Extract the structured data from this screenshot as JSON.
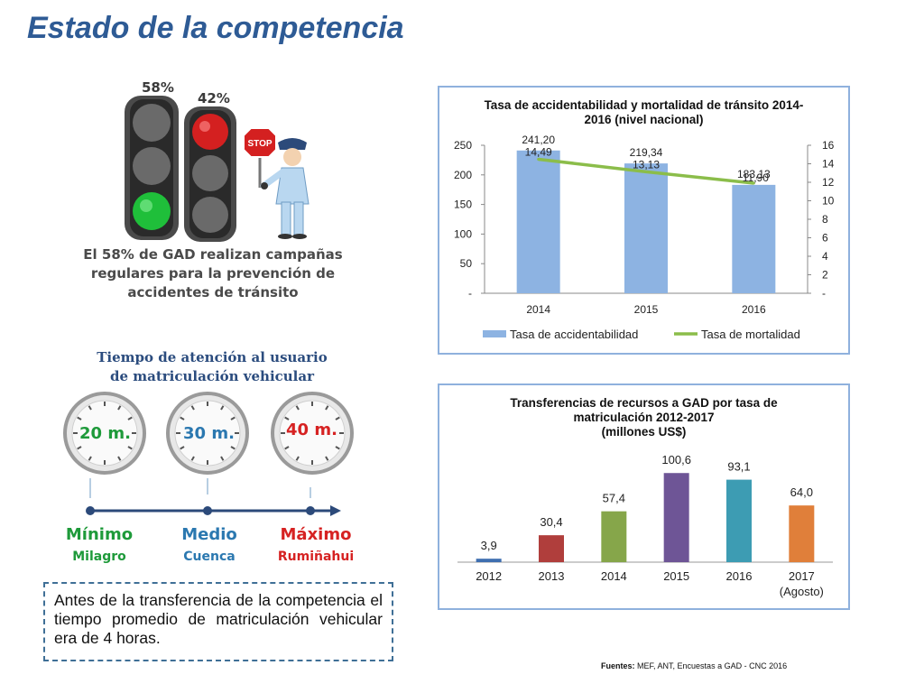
{
  "page": {
    "title": "Estado de la competencia",
    "sources_label": "Fuentes:",
    "sources_text": "MEF, ANT, Encuestas a GAD - CNC 2016"
  },
  "traffic_lights": {
    "green_pct": "58%",
    "red_pct": "42%",
    "stop_sign": "STOP",
    "campaign_text": "El 58% de GAD realizan campañas regulares para la prevención de accidentes de tránsito",
    "colors": {
      "green": "#1fbf3a",
      "red": "#d42020"
    }
  },
  "attention_time": {
    "title": "Tiempo de atención al usuario de matriculación vehicular",
    "clocks": [
      {
        "time": "20 m.",
        "level": "Mínimo",
        "city": "Milagro",
        "color": "#1e9a3a"
      },
      {
        "time": "30 m.",
        "level": "Medio",
        "city": "Cuenca",
        "color": "#2b78b0"
      },
      {
        "time": "40 m.",
        "level": "Máximo",
        "city": "Rumiñahui",
        "color": "#d62222"
      }
    ]
  },
  "note": {
    "text": "Antes de la transferencia de la competencia el tiempo promedio de matriculación vehicular era de 4 horas."
  },
  "chart_data": [
    {
      "type": "bar",
      "title": "Tasa de accidentabilidad y mortalidad de tránsito 2014-2016 (nivel nacional)",
      "categories": [
        "2014",
        "2015",
        "2016"
      ],
      "series": [
        {
          "name": "Tasa de accidentabilidad",
          "type": "bar",
          "axis": "left",
          "values": [
            241.2,
            219.34,
            183.13
          ],
          "labels": [
            "241,20",
            "219,34",
            "183,13"
          ],
          "color": "#8db3e2"
        },
        {
          "name": "Tasa de mortalidad",
          "type": "line",
          "axis": "right",
          "values": [
            14.49,
            13.13,
            11.9
          ],
          "labels": [
            "14,49",
            "13,13",
            "11,90"
          ],
          "color": "#8bbd4a"
        }
      ],
      "y_left": {
        "min": 0,
        "max": 250,
        "ticks": [
          "-",
          "50",
          "100",
          "150",
          "200",
          "250"
        ]
      },
      "y_right": {
        "min": 0,
        "max": 16,
        "ticks": [
          "-",
          "2",
          "4",
          "6",
          "8",
          "10",
          "12",
          "14",
          "16"
        ]
      },
      "legend": "bottom",
      "grid": false
    },
    {
      "type": "bar",
      "title": "Transferencias de recursos a GAD por tasa de matriculación 2012-2017 (millones US$)",
      "title_lines": [
        "Transferencias de recursos a GAD por  tasa de",
        "matriculación 2012-2017",
        "(millones US$)"
      ],
      "categories": [
        "2012",
        "2013",
        "2014",
        "2015",
        "2016",
        "2017"
      ],
      "category_sub": [
        "",
        "",
        "",
        "",
        "",
        "(Agosto)"
      ],
      "values": [
        3.9,
        30.4,
        57.4,
        100.6,
        93.1,
        64.0
      ],
      "labels": [
        "3,9",
        "30,4",
        "57,4",
        "100,6",
        "93,1",
        "64,0"
      ],
      "colors": [
        "#3f6fb0",
        "#b03e3c",
        "#86a64a",
        "#6e5596",
        "#3d9cb3",
        "#e07f3a"
      ],
      "ylim": [
        0,
        110
      ],
      "grid": false
    }
  ]
}
